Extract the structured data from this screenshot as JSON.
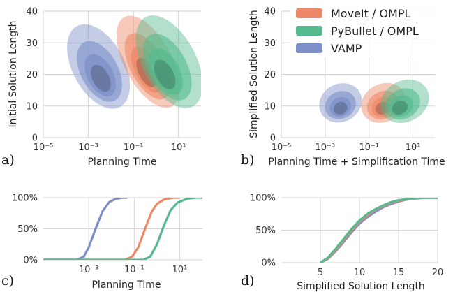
{
  "colors": {
    "moveit": "#ee8866",
    "pybullet": "#55bb8f",
    "vamp": "#7c8fc8",
    "grid": "#d3d3d3"
  },
  "legend": {
    "position": "top-right of panel b",
    "items": [
      {
        "name": "MoveIt / OMPL",
        "color": "#ee8866"
      },
      {
        "name": "PyBullet / OMPL",
        "color": "#55bb8f"
      },
      {
        "name": "VAMP",
        "color": "#7c8fc8"
      }
    ]
  },
  "panel_labels": {
    "a": "a)",
    "b": "b)",
    "c": "c)",
    "d": "d)"
  },
  "chart_data": [
    {
      "type": "contour",
      "panel": "a",
      "xlabel": "Planning Time",
      "ylabel": "Initial Solution Length",
      "xscale": "log",
      "xlim": [
        1e-05,
        100
      ],
      "ylim": [
        0,
        40
      ],
      "xticks": [
        {
          "value": 1e-05,
          "label": "10⁻⁵"
        },
        {
          "value": 0.001,
          "label": "10⁻³"
        },
        {
          "value": 0.1,
          "label": "10⁻¹"
        },
        {
          "value": 10,
          "label": "10¹"
        }
      ],
      "yticks": [
        0,
        10,
        20,
        30,
        40
      ],
      "grid": true,
      "series": [
        {
          "name": "VAMP",
          "color": "#7c8fc8",
          "center_x": 0.004,
          "center_y": 17,
          "x_range": [
            0.0002,
            0.04
          ],
          "y_range": [
            8,
            37
          ]
        },
        {
          "name": "MoveIt / OMPL",
          "color": "#ee8866",
          "center_x": 0.35,
          "center_y": 19,
          "x_range": [
            0.04,
            5
          ],
          "y_range": [
            8,
            40
          ]
        },
        {
          "name": "PyBullet / OMPL",
          "color": "#55bb8f",
          "center_x": 2,
          "center_y": 18,
          "x_range": [
            0.25,
            60
          ],
          "y_range": [
            8,
            40
          ]
        }
      ]
    },
    {
      "type": "contour",
      "panel": "b",
      "xlabel": "Planning Time + Simplification Time",
      "ylabel": "Simplified Solution Length",
      "xscale": "log",
      "xlim": [
        1e-05,
        100
      ],
      "ylim": [
        0,
        40
      ],
      "xticks": [
        {
          "value": 1e-05,
          "label": "10⁻⁵"
        },
        {
          "value": 0.001,
          "label": "10⁻³"
        },
        {
          "value": 0.1,
          "label": "10⁻¹"
        },
        {
          "value": 10,
          "label": "10¹"
        }
      ],
      "yticks": [
        0,
        10,
        20,
        30,
        40
      ],
      "grid": true,
      "series": [
        {
          "name": "VAMP",
          "color": "#7c8fc8",
          "center_x": 0.005,
          "center_y": 8.5,
          "x_range": [
            0.0005,
            0.05
          ],
          "y_range": [
            5,
            17
          ]
        },
        {
          "name": "MoveIt / OMPL",
          "color": "#ee8866",
          "center_x": 0.4,
          "center_y": 8.5,
          "x_range": [
            0.04,
            5
          ],
          "y_range": [
            5,
            17
          ]
        },
        {
          "name": "PyBullet / OMPL",
          "color": "#55bb8f",
          "center_x": 2,
          "center_y": 8.5,
          "x_range": [
            0.3,
            60
          ],
          "y_range": [
            5,
            18
          ]
        }
      ]
    },
    {
      "type": "line",
      "panel": "c",
      "xlabel": "Planning Time",
      "ylabel": "",
      "xscale": "log",
      "xlim": [
        1e-05,
        100
      ],
      "ylim": [
        0,
        1
      ],
      "xticks": [
        {
          "value": 0.001,
          "label": "10⁻³"
        },
        {
          "value": 0.1,
          "label": "10⁻¹"
        },
        {
          "value": 10,
          "label": "10¹"
        }
      ],
      "yticks": [
        {
          "value": 0,
          "label": "0%"
        },
        {
          "value": 0.5,
          "label": "50%"
        },
        {
          "value": 1,
          "label": "100%"
        }
      ],
      "grid": true,
      "series": [
        {
          "name": "VAMP",
          "color": "#7c8fc8",
          "x": [
            1e-05,
            0.0003,
            0.0006,
            0.001,
            0.002,
            0.004,
            0.008,
            0.015,
            0.03,
            0.05
          ],
          "y": [
            0,
            0,
            0.05,
            0.2,
            0.5,
            0.78,
            0.93,
            0.98,
            1.0,
            1.0
          ]
        },
        {
          "name": "MoveIt / OMPL",
          "color": "#ee8866",
          "x": [
            1e-05,
            0.04,
            0.08,
            0.15,
            0.3,
            0.6,
            1.0,
            2.0,
            5.0,
            10.0
          ],
          "y": [
            0,
            0,
            0.05,
            0.2,
            0.5,
            0.78,
            0.9,
            0.97,
            1.0,
            1.0
          ]
        },
        {
          "name": "PyBullet / OMPL",
          "color": "#55bb8f",
          "x": [
            1e-05,
            0.25,
            0.5,
            1.0,
            2.0,
            4.0,
            8.0,
            20.0,
            50.0,
            100.0
          ],
          "y": [
            0,
            0,
            0.05,
            0.25,
            0.55,
            0.8,
            0.92,
            0.98,
            1.0,
            1.0
          ]
        }
      ]
    },
    {
      "type": "line",
      "panel": "d",
      "xlabel": "Simplified Solution Length",
      "ylabel": "",
      "xlim": [
        0,
        20
      ],
      "ylim": [
        0,
        1
      ],
      "xticks": [
        {
          "value": 5,
          "label": "5"
        },
        {
          "value": 10,
          "label": "10"
        },
        {
          "value": 15,
          "label": "15"
        },
        {
          "value": 20,
          "label": "20"
        }
      ],
      "yticks": [
        {
          "value": 0,
          "label": "0%"
        },
        {
          "value": 0.5,
          "label": "50%"
        },
        {
          "value": 1,
          "label": "100%"
        }
      ],
      "grid": true,
      "series": [
        {
          "name": "VAMP",
          "color": "#7c8fc8",
          "x": [
            5,
            6,
            7,
            8,
            9,
            10,
            11,
            12,
            13,
            14,
            15,
            16,
            17,
            18,
            20
          ],
          "y": [
            0,
            0.06,
            0.18,
            0.32,
            0.47,
            0.6,
            0.7,
            0.78,
            0.85,
            0.9,
            0.94,
            0.97,
            0.985,
            0.995,
            1.0
          ]
        },
        {
          "name": "MoveIt / OMPL",
          "color": "#ee8866",
          "x": [
            5,
            6,
            7,
            8,
            9,
            10,
            11,
            12,
            13,
            14,
            15,
            16,
            17,
            18,
            20
          ],
          "y": [
            0,
            0.07,
            0.2,
            0.35,
            0.5,
            0.63,
            0.73,
            0.81,
            0.87,
            0.92,
            0.95,
            0.975,
            0.99,
            0.997,
            1.0
          ]
        },
        {
          "name": "PyBullet / OMPL",
          "color": "#55bb8f",
          "x": [
            5,
            6,
            7,
            8,
            9,
            10,
            11,
            12,
            13,
            14,
            15,
            16,
            17,
            18,
            20
          ],
          "y": [
            0,
            0.08,
            0.22,
            0.37,
            0.52,
            0.65,
            0.75,
            0.82,
            0.88,
            0.93,
            0.96,
            0.98,
            0.99,
            0.998,
            1.0
          ]
        }
      ]
    }
  ]
}
